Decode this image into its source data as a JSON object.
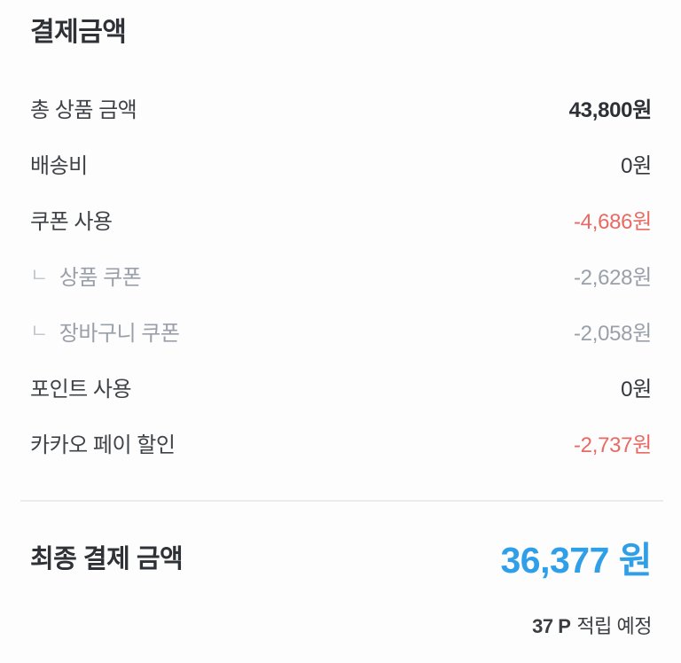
{
  "colors": {
    "accent_blue": "#2fa0e8",
    "discount_red": "#e96a63",
    "muted_gray": "#9aa0a9",
    "text_dark": "#2e3135",
    "divider": "#e9ebed",
    "background": "#fdfdfe"
  },
  "header": {
    "title": "결제금액"
  },
  "icons": {
    "sub_item_marker": "ㄴ"
  },
  "rows": [
    {
      "label": "총 상품 금액",
      "value": "43,800원"
    },
    {
      "label": "배송비",
      "value": "0원"
    },
    {
      "label": "쿠폰 사용",
      "value": "-4,686원"
    },
    {
      "label": "상품 쿠폰",
      "value": "-2,628원"
    },
    {
      "label": "장바구니 쿠폰",
      "value": "-2,058원"
    },
    {
      "label": "포인트 사용",
      "value": "0원"
    },
    {
      "label": "카카오 페이 할인",
      "value": "-2,737원"
    }
  ],
  "footer": {
    "final_label": "최종 결제 금액",
    "final_value": "36,377 원",
    "points_value": "37 P",
    "points_label": "적립 예정"
  }
}
